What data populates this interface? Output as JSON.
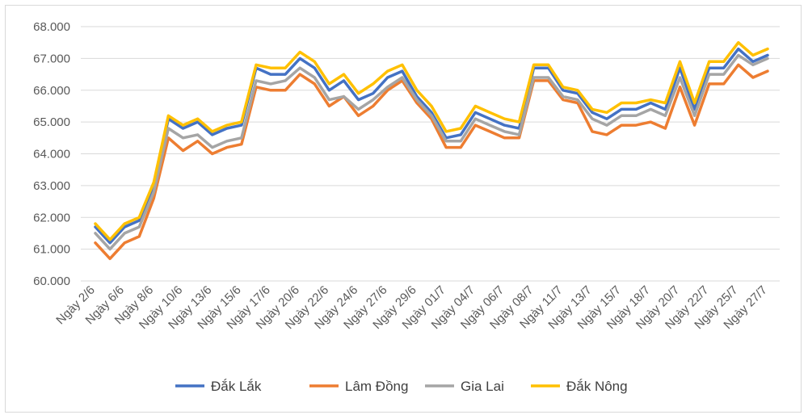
{
  "chart_data": {
    "type": "line",
    "title": "",
    "xlabel": "",
    "ylabel": "",
    "ylim": [
      60000,
      68000
    ],
    "y_ticks": [
      "60.000",
      "61.000",
      "62.000",
      "63.000",
      "64.000",
      "65.000",
      "66.000",
      "67.000",
      "68.000"
    ],
    "grid": "horizontal",
    "legend_position": "bottom",
    "x_tick_labels": [
      "Ngày 2/6",
      "Ngày 6/6",
      "Ngày 8/6",
      "Ngày 10/6",
      "Ngày 13/6",
      "Ngày 15/6",
      "Ngày 17/6",
      "Ngày 20/6",
      "Ngày 22/6",
      "Ngày 24/6",
      "Ngày 27/6",
      "Ngày 29/6",
      "Ngày 01/7",
      "Ngày 04/7",
      "Ngày 06/7",
      "Ngày 08/7",
      "Ngày 11/7",
      "Ngày 13/7",
      "Ngày 15/7",
      "Ngày 18/7",
      "Ngày 20/7",
      "Ngày 22/7",
      "Ngày 25/7",
      "Ngày 27/7"
    ],
    "series": [
      {
        "name": "Đắk Lắk",
        "color": "#4472c4",
        "values": [
          61700,
          61200,
          61700,
          61900,
          63000,
          65100,
          64800,
          65000,
          64600,
          64800,
          64900,
          66700,
          66500,
          66500,
          67000,
          66700,
          66000,
          66300,
          65700,
          65900,
          66400,
          66600,
          65800,
          65300,
          64500,
          64600,
          65300,
          65100,
          64900,
          64800,
          66700,
          66700,
          66000,
          65900,
          65300,
          65100,
          65400,
          65400,
          65600,
          65400,
          66700,
          65400,
          66700,
          66700,
          67300,
          66900,
          67100
        ]
      },
      {
        "name": "Lâm Đồng",
        "color": "#ed7d31",
        "values": [
          61200,
          60700,
          61200,
          61400,
          62600,
          64500,
          64100,
          64400,
          64000,
          64200,
          64300,
          66100,
          66000,
          66000,
          66500,
          66200,
          65500,
          65800,
          65200,
          65500,
          66000,
          66300,
          65600,
          65100,
          64200,
          64200,
          64900,
          64700,
          64500,
          64500,
          66300,
          66300,
          65700,
          65600,
          64700,
          64600,
          64900,
          64900,
          65000,
          64800,
          66100,
          64900,
          66200,
          66200,
          66800,
          66400,
          66600
        ]
      },
      {
        "name": "Gia Lai",
        "color": "#a5a5a5",
        "values": [
          61500,
          61000,
          61500,
          61700,
          62800,
          64800,
          64500,
          64600,
          64200,
          64400,
          64500,
          66300,
          66200,
          66300,
          66700,
          66400,
          65700,
          65800,
          65400,
          65700,
          66100,
          66400,
          65700,
          65200,
          64400,
          64400,
          65100,
          64900,
          64700,
          64600,
          66400,
          66400,
          65800,
          65700,
          65100,
          64900,
          65200,
          65200,
          65400,
          65200,
          66400,
          65200,
          66500,
          66500,
          67100,
          66800,
          67000
        ]
      },
      {
        "name": "Đắk Nông",
        "color": "#ffc000",
        "values": [
          61800,
          61300,
          61800,
          62000,
          63100,
          65200,
          64900,
          65100,
          64700,
          64900,
          65000,
          66800,
          66700,
          66700,
          67200,
          66900,
          66200,
          66500,
          65900,
          66200,
          66600,
          66800,
          66000,
          65500,
          64700,
          64800,
          65500,
          65300,
          65100,
          65000,
          66800,
          66800,
          66100,
          66000,
          65400,
          65300,
          65600,
          65600,
          65700,
          65600,
          66900,
          65600,
          66900,
          66900,
          67500,
          67100,
          67300
        ]
      }
    ]
  }
}
